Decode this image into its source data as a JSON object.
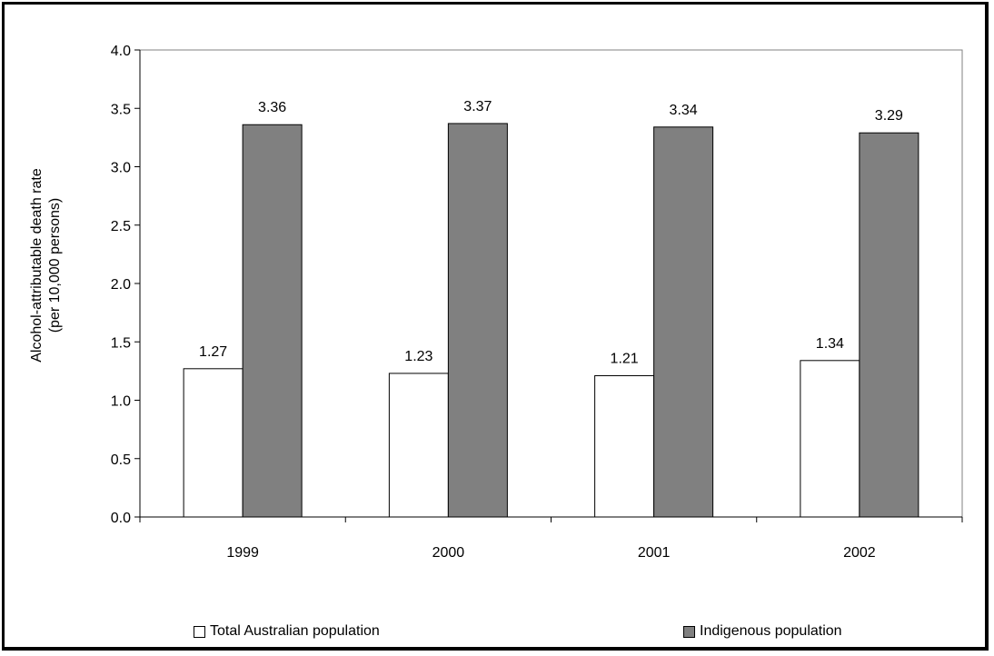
{
  "chart_data": {
    "type": "bar",
    "title": "",
    "xlabel": "",
    "ylabel": "Alcohol-attributable death rate (per 10,000 persons)",
    "ylabel_lines": [
      "Alcohol-attributable death rate",
      "(per 10,000 persons)"
    ],
    "categories": [
      "1999",
      "2000",
      "2001",
      "2002"
    ],
    "ylim": [
      0,
      4.0
    ],
    "ytick_step": 0.5,
    "yticks": [
      "0.0",
      "0.5",
      "1.0",
      "1.5",
      "2.0",
      "2.5",
      "3.0",
      "3.5",
      "4.0"
    ],
    "grid": false,
    "legend_position": "bottom",
    "series": [
      {
        "name": "Total Australian population",
        "values": [
          1.27,
          1.23,
          1.21,
          1.34
        ],
        "labels": [
          "1.27",
          "1.23",
          "1.21",
          "1.34"
        ],
        "color": "#ffffff"
      },
      {
        "name": "Indigenous population",
        "values": [
          3.36,
          3.37,
          3.34,
          3.29
        ],
        "labels": [
          "3.36",
          "3.37",
          "3.34",
          "3.29"
        ],
        "color": "#808080"
      }
    ]
  },
  "legend": {
    "total_label": "Total Australian population",
    "indigenous_label": "Indigenous population"
  }
}
